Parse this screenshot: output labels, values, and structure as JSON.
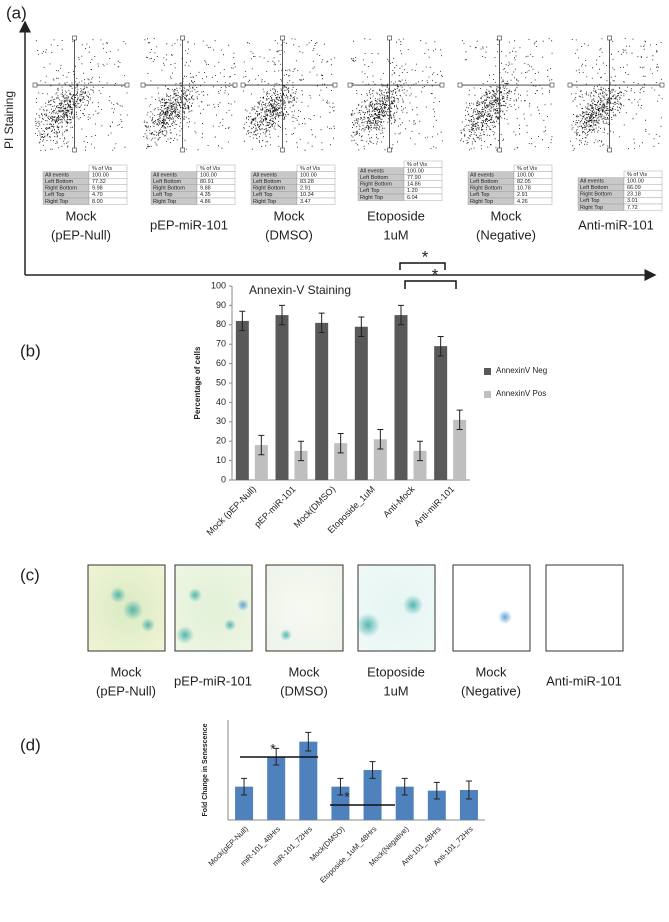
{
  "panel_labels": [
    "(a)",
    "(b)",
    "(c)",
    "(d)"
  ],
  "flow": {
    "y_label": "PI Staining",
    "x_label": "Annexin-V Staining",
    "header": "% of Vis",
    "row_labels": [
      "All events",
      "Left Bottom",
      "Right Bottom",
      "Left Top",
      "Right Top"
    ],
    "samples": [
      {
        "label": [
          "Mock",
          "(pEP-Null)"
        ],
        "values": [
          "100.00",
          "77.32",
          "9.98",
          "4.70",
          "8.00"
        ]
      },
      {
        "label": [
          "pEP-miR-101"
        ],
        "values": [
          "100.00",
          "80.91",
          "9.88",
          "4.35",
          "4.86"
        ]
      },
      {
        "label": [
          "Mock",
          "(DMSO)"
        ],
        "values": [
          "100.00",
          "83.28",
          "2.91",
          "10.34",
          "3.47"
        ]
      },
      {
        "label": [
          "Etoposide",
          "1uM"
        ],
        "values": [
          "100.00",
          "77.90",
          "14.86",
          "1.20",
          "6.04"
        ]
      },
      {
        "label": [
          "Mock",
          "(Negative)"
        ],
        "values": [
          "100.00",
          "82.05",
          "10.78",
          "2.91",
          "4.26"
        ]
      },
      {
        "label": [
          "Anti-miR-101"
        ],
        "values": [
          "100.00",
          "66.09",
          "23.18",
          "3.01",
          "7.72"
        ]
      }
    ]
  },
  "images": {
    "labels": [
      [
        "Mock",
        "(pEP-Null)"
      ],
      [
        "pEP-miR-101"
      ],
      [
        "Mock",
        "(DMSO)"
      ],
      [
        "Etoposide",
        "1uM"
      ],
      [
        "Mock",
        "(Negative)"
      ],
      [
        "Anti-miR-101"
      ]
    ]
  },
  "chart_data": [
    {
      "type": "bar",
      "y_label": "Percentage of cells",
      "categories": [
        "Mock (pEP-Null)",
        "pEP-miR-101",
        "Mock(DMSO)",
        "Etoposide_1uM",
        "Anti-Mock",
        "Anti-miR-101"
      ],
      "series": [
        {
          "name": "AnnexinV Neg",
          "color": "#595959",
          "values": [
            82,
            85,
            81,
            79,
            85,
            69
          ],
          "errors": [
            5,
            5,
            5,
            5,
            5,
            5
          ]
        },
        {
          "name": "AnnexinV Pos",
          "color": "#bfbfbf",
          "values": [
            18,
            15,
            19,
            21,
            15,
            31
          ],
          "errors": [
            5,
            5,
            5,
            5,
            5,
            5
          ]
        }
      ],
      "ylim": [
        0,
        100
      ],
      "yticks": [
        0,
        10,
        20,
        30,
        40,
        50,
        60,
        70,
        80,
        90,
        100
      ],
      "legend": "right",
      "annotations": [
        "*",
        "*"
      ]
    },
    {
      "type": "bar",
      "y_label": "Fold Change in Senescence",
      "categories": [
        "Mock(pEP-Null)",
        "miR-101_48Hrs",
        "miR-101_72Hrs",
        "Mock(DMSO)",
        "Etoposide_1uM_48Hrs",
        "Mock(Negative)",
        "Anti-101_48Hrs",
        "Anti-101_72Hrs"
      ],
      "series": [
        {
          "color": "#4f81bd",
          "values": [
            1.0,
            1.9,
            2.35,
            1.0,
            1.5,
            1.0,
            0.88,
            0.9
          ],
          "errors": [
            0.25,
            0.25,
            0.28,
            0.25,
            0.25,
            0.25,
            0.25,
            0.27
          ]
        }
      ],
      "ylim": [
        0,
        3
      ],
      "annotations": [
        "*",
        "*"
      ]
    }
  ]
}
